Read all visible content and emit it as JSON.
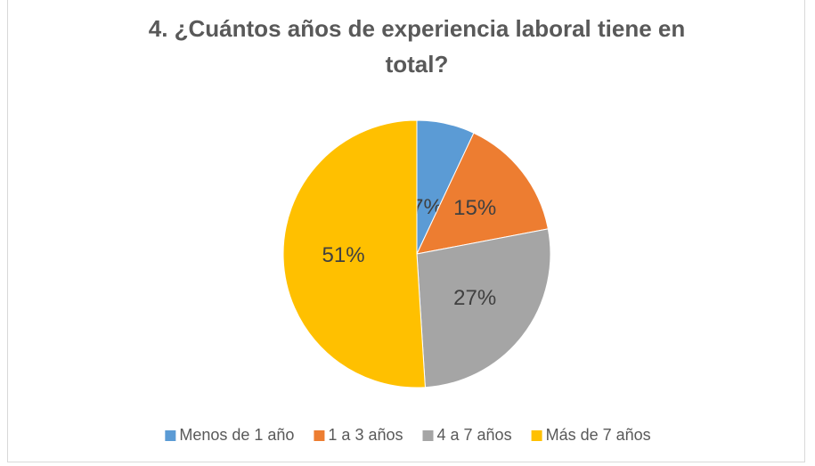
{
  "chart_data": {
    "type": "pie",
    "title": "4. ¿Cuántos años de experiencia laboral tiene en total?",
    "categories": [
      "Menos de 1 año",
      "1 a 3 años",
      "4 a 7 años",
      "Más de 7 años"
    ],
    "values": [
      7,
      15,
      27,
      51
    ],
    "value_labels": [
      "7%",
      "15%",
      "27%",
      "51%"
    ],
    "colors": [
      "#5b9bd5",
      "#ed7d31",
      "#a5a5a5",
      "#ffc000"
    ],
    "legend": "bottom"
  }
}
